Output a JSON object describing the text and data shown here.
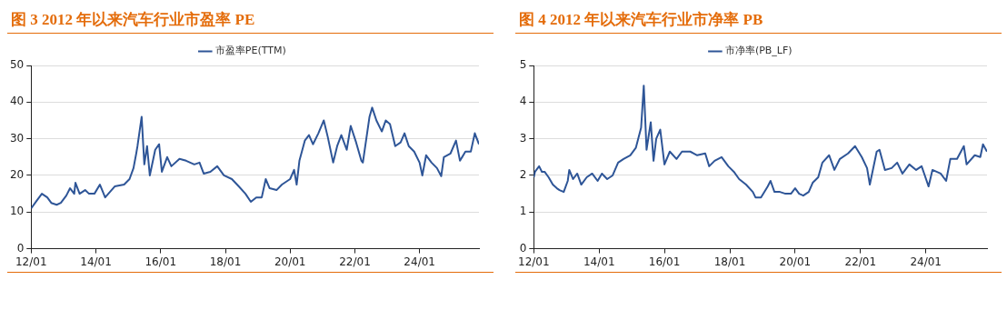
{
  "chart_data": [
    {
      "type": "line",
      "title": "图 3 2012 年以来汽车行业市盈率 PE",
      "grid": "y",
      "legend": "top",
      "xlim": [
        "2012-01-01",
        "2025-11-01"
      ],
      "xticks": [
        {
          "value": "2012-01-01",
          "label": "12/01"
        },
        {
          "value": "2014-01-01",
          "label": "14/01"
        },
        {
          "value": "2016-01-01",
          "label": "16/01"
        },
        {
          "value": "2018-01-01",
          "label": "18/01"
        },
        {
          "value": "2020-01-01",
          "label": "20/01"
        },
        {
          "value": "2022-01-01",
          "label": "22/01"
        },
        {
          "value": "2024-01-01",
          "label": "24/01"
        }
      ],
      "ylim": [
        0,
        50
      ],
      "yticks": [
        0,
        10,
        20,
        30,
        40,
        50
      ],
      "x": [
        "2012-01-01",
        "2012-03-01",
        "2012-05-01",
        "2012-07-01",
        "2012-08-15",
        "2012-10-15",
        "2012-12-01",
        "2013-02-01",
        "2013-03-15",
        "2013-05-01",
        "2013-05-15",
        "2013-07-01",
        "2013-09-01",
        "2013-10-15",
        "2013-12-15",
        "2014-02-15",
        "2014-04-15",
        "2014-08-01",
        "2014-11-15",
        "2015-01-15",
        "2015-03-01",
        "2015-04-01",
        "2015-04-15",
        "2015-06-01",
        "2015-07-01",
        "2015-08-01",
        "2015-09-01",
        "2015-11-01",
        "2015-12-15",
        "2016-01-15",
        "2016-03-15",
        "2016-05-01",
        "2016-08-01",
        "2016-10-15",
        "2017-01-15",
        "2017-03-15",
        "2017-05-01",
        "2017-07-15",
        "2017-10-01",
        "2017-12-15",
        "2018-03-15",
        "2018-06-01",
        "2018-08-15",
        "2018-10-15",
        "2018-12-15",
        "2019-02-15",
        "2019-04-01",
        "2019-05-15",
        "2019-08-01",
        "2019-10-01",
        "2020-01-01",
        "2020-02-15",
        "2020-03-15",
        "2020-04-15",
        "2020-06-15",
        "2020-08-01",
        "2020-09-15",
        "2020-11-15",
        "2021-01-15",
        "2021-03-01",
        "2021-05-01",
        "2021-06-15",
        "2021-08-01",
        "2021-10-01",
        "2021-11-15",
        "2022-01-15",
        "2022-03-15",
        "2022-04-01",
        "2022-06-15",
        "2022-07-15",
        "2022-09-01",
        "2022-11-01",
        "2022-12-15",
        "2023-02-01",
        "2023-04-01",
        "2023-06-01",
        "2023-07-15",
        "2023-09-01",
        "2023-11-01",
        "2024-01-01",
        "2024-02-01",
        "2024-03-15",
        "2024-05-15",
        "2024-07-15",
        "2024-09-01",
        "2024-10-01",
        "2024-12-15",
        "2025-02-15",
        "2025-04-01",
        "2025-06-01",
        "2025-08-01",
        "2025-09-15",
        "2025-11-01"
      ],
      "series": [
        {
          "name": "市盈率PE(TTM)",
          "color": "#2e5597",
          "values": [
            11,
            13,
            15,
            14,
            12.5,
            12,
            12.5,
            14.5,
            16.5,
            15,
            18,
            15,
            16,
            15,
            15,
            17.5,
            14,
            17,
            17.5,
            19,
            22,
            26,
            28,
            36,
            23,
            28,
            20,
            27,
            28.5,
            21,
            25,
            22.5,
            24.5,
            24,
            23,
            23.5,
            20.5,
            21,
            22.5,
            20,
            19,
            17,
            15,
            12.8,
            14,
            14,
            19,
            16.5,
            16,
            17.5,
            19,
            21.5,
            17.5,
            24,
            29.5,
            31,
            28.5,
            31.5,
            35,
            30.5,
            23.5,
            28,
            31,
            27,
            33.5,
            29,
            24,
            23.5,
            36,
            38.5,
            35,
            32,
            35,
            34,
            28,
            29,
            31.5,
            28,
            26.5,
            23.5,
            20,
            25.5,
            23.5,
            22,
            19.8,
            25,
            26,
            29.5,
            24,
            26.5,
            26.5,
            31.5,
            28.5
          ]
        }
      ]
    },
    {
      "type": "line",
      "title": "图 4 2012 年以来汽车行业市净率 PB",
      "grid": "y",
      "legend": "top",
      "xlim": [
        "2012-01-01",
        "2025-11-15"
      ],
      "xticks": [
        {
          "value": "2012-01-01",
          "label": "12/01"
        },
        {
          "value": "2014-01-01",
          "label": "14/01"
        },
        {
          "value": "2016-01-01",
          "label": "16/01"
        },
        {
          "value": "2018-01-01",
          "label": "18/01"
        },
        {
          "value": "2020-01-01",
          "label": "20/01"
        },
        {
          "value": "2022-01-01",
          "label": "22/01"
        },
        {
          "value": "2024-01-01",
          "label": "24/01"
        }
      ],
      "ylim": [
        0,
        5
      ],
      "yticks": [
        0,
        1,
        2,
        3,
        4,
        5
      ],
      "x": [
        "2012-01-01",
        "2012-01-15",
        "2012-03-01",
        "2012-04-01",
        "2012-05-01",
        "2012-06-15",
        "2012-08-01",
        "2012-09-15",
        "2012-10-15",
        "2012-12-01",
        "2013-01-15",
        "2013-02-01",
        "2013-03-15",
        "2013-05-01",
        "2013-06-15",
        "2013-08-15",
        "2013-10-15",
        "2013-12-15",
        "2014-02-01",
        "2014-04-01",
        "2014-06-01",
        "2014-08-01",
        "2014-10-01",
        "2014-12-15",
        "2015-02-15",
        "2015-04-15",
        "2015-05-15",
        "2015-06-15",
        "2015-08-01",
        "2015-09-01",
        "2015-10-01",
        "2015-11-15",
        "2016-01-01",
        "2016-03-01",
        "2016-05-15",
        "2016-07-15",
        "2016-10-15",
        "2017-01-01",
        "2017-04-01",
        "2017-05-15",
        "2017-07-15",
        "2017-10-01",
        "2017-12-15",
        "2018-02-15",
        "2018-04-15",
        "2018-07-01",
        "2018-09-15",
        "2018-10-15",
        "2018-12-15",
        "2019-03-01",
        "2019-04-01",
        "2019-05-15",
        "2019-07-15",
        "2019-09-15",
        "2019-11-15",
        "2020-01-01",
        "2020-02-15",
        "2020-04-01",
        "2020-06-01",
        "2020-07-15",
        "2020-09-15",
        "2020-11-01",
        "2021-01-15",
        "2021-03-15",
        "2021-05-15",
        "2021-08-15",
        "2021-11-01",
        "2022-01-15",
        "2022-03-15",
        "2022-04-15",
        "2022-07-01",
        "2022-08-01",
        "2022-10-01",
        "2022-12-15",
        "2023-02-15",
        "2023-04-15",
        "2023-07-01",
        "2023-09-15",
        "2023-11-15",
        "2024-02-01",
        "2024-03-15",
        "2024-06-15",
        "2024-08-15",
        "2024-10-01",
        "2024-12-15",
        "2025-03-01",
        "2025-04-01",
        "2025-07-01",
        "2025-09-01",
        "2025-10-01",
        "2025-11-15"
      ],
      "series": [
        {
          "name": "市净率(PB_LF)",
          "color": "#2e5597",
          "values": [
            1.95,
            2.1,
            2.25,
            2.1,
            2.1,
            1.95,
            1.75,
            1.65,
            1.6,
            1.55,
            1.85,
            2.15,
            1.9,
            2.05,
            1.75,
            1.95,
            2.05,
            1.85,
            2.05,
            1.9,
            2.0,
            2.35,
            2.45,
            2.55,
            2.75,
            3.3,
            4.45,
            2.7,
            3.45,
            2.4,
            3.0,
            3.25,
            2.3,
            2.65,
            2.45,
            2.65,
            2.65,
            2.55,
            2.6,
            2.25,
            2.4,
            2.5,
            2.25,
            2.1,
            1.9,
            1.75,
            1.55,
            1.4,
            1.4,
            1.7,
            1.85,
            1.55,
            1.55,
            1.5,
            1.5,
            1.65,
            1.5,
            1.45,
            1.55,
            1.8,
            1.95,
            2.35,
            2.55,
            2.15,
            2.45,
            2.6,
            2.8,
            2.5,
            2.2,
            1.75,
            2.65,
            2.7,
            2.15,
            2.2,
            2.35,
            2.05,
            2.3,
            2.15,
            2.25,
            1.7,
            2.15,
            2.05,
            1.85,
            2.45,
            2.45,
            2.8,
            2.3,
            2.55,
            2.5,
            2.85,
            2.65
          ]
        }
      ]
    }
  ]
}
